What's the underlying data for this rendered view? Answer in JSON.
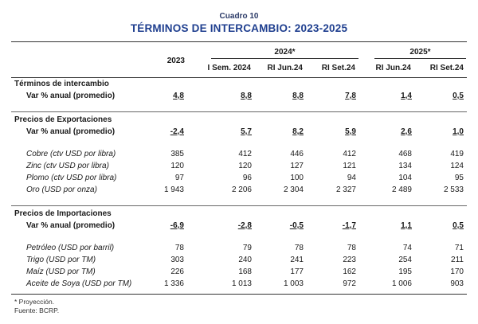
{
  "header": {
    "cuadro": "Cuadro 10",
    "title": "TÉRMINOS DE INTERCAMBIO: 2023-2025"
  },
  "columns": {
    "year2023": "2023",
    "group2024": "2024*",
    "group2025": "2025*",
    "sub": [
      "I Sem. 2024",
      "RI Jun.24",
      "RI Set.24",
      "RI Jun.24",
      "RI Set.24"
    ]
  },
  "sections": [
    {
      "title": "Términos de intercambio",
      "summary": {
        "label": "Var % anual (promedio)",
        "values": [
          "4,8",
          "8,8",
          "8,8",
          "7,8",
          "1,4",
          "0,5"
        ]
      },
      "items": []
    },
    {
      "title": "Precios de Exportaciones",
      "summary": {
        "label": "Var % anual (promedio)",
        "values": [
          "-2,4",
          "5,7",
          "8,2",
          "5,9",
          "2,6",
          "1,0"
        ]
      },
      "items": [
        {
          "label": "Cobre (ctv USD por libra)",
          "values": [
            "385",
            "412",
            "446",
            "412",
            "468",
            "419"
          ]
        },
        {
          "label": "Zinc (ctv USD por libra)",
          "values": [
            "120",
            "120",
            "127",
            "121",
            "134",
            "124"
          ]
        },
        {
          "label": "Plomo (ctv USD por libra)",
          "values": [
            "97",
            "96",
            "100",
            "94",
            "104",
            "95"
          ]
        },
        {
          "label": "Oro (USD por onza)",
          "values": [
            "1 943",
            "2 206",
            "2 304",
            "2 327",
            "2 489",
            "2 533"
          ]
        }
      ]
    },
    {
      "title": "Precios de Importaciones",
      "summary": {
        "label": "Var % anual (promedio)",
        "values": [
          "-6,9",
          "-2,8",
          "-0,5",
          "-1,7",
          "1,1",
          "0,5"
        ]
      },
      "items": [
        {
          "label": "Petróleo (USD por barril)",
          "values": [
            "78",
            "79",
            "78",
            "78",
            "74",
            "71"
          ]
        },
        {
          "label": "Trigo (USD por TM)",
          "values": [
            "303",
            "240",
            "241",
            "223",
            "254",
            "211"
          ]
        },
        {
          "label": "Maíz (USD por TM)",
          "values": [
            "226",
            "168",
            "177",
            "162",
            "195",
            "170"
          ]
        },
        {
          "label": "Aceite de Soya (USD por TM)",
          "values": [
            "1 336",
            "1 013",
            "1 003",
            "972",
            "1 006",
            "903"
          ]
        }
      ]
    }
  ],
  "footnotes": [
    "* Proyección.",
    "Fuente: BCRP."
  ]
}
